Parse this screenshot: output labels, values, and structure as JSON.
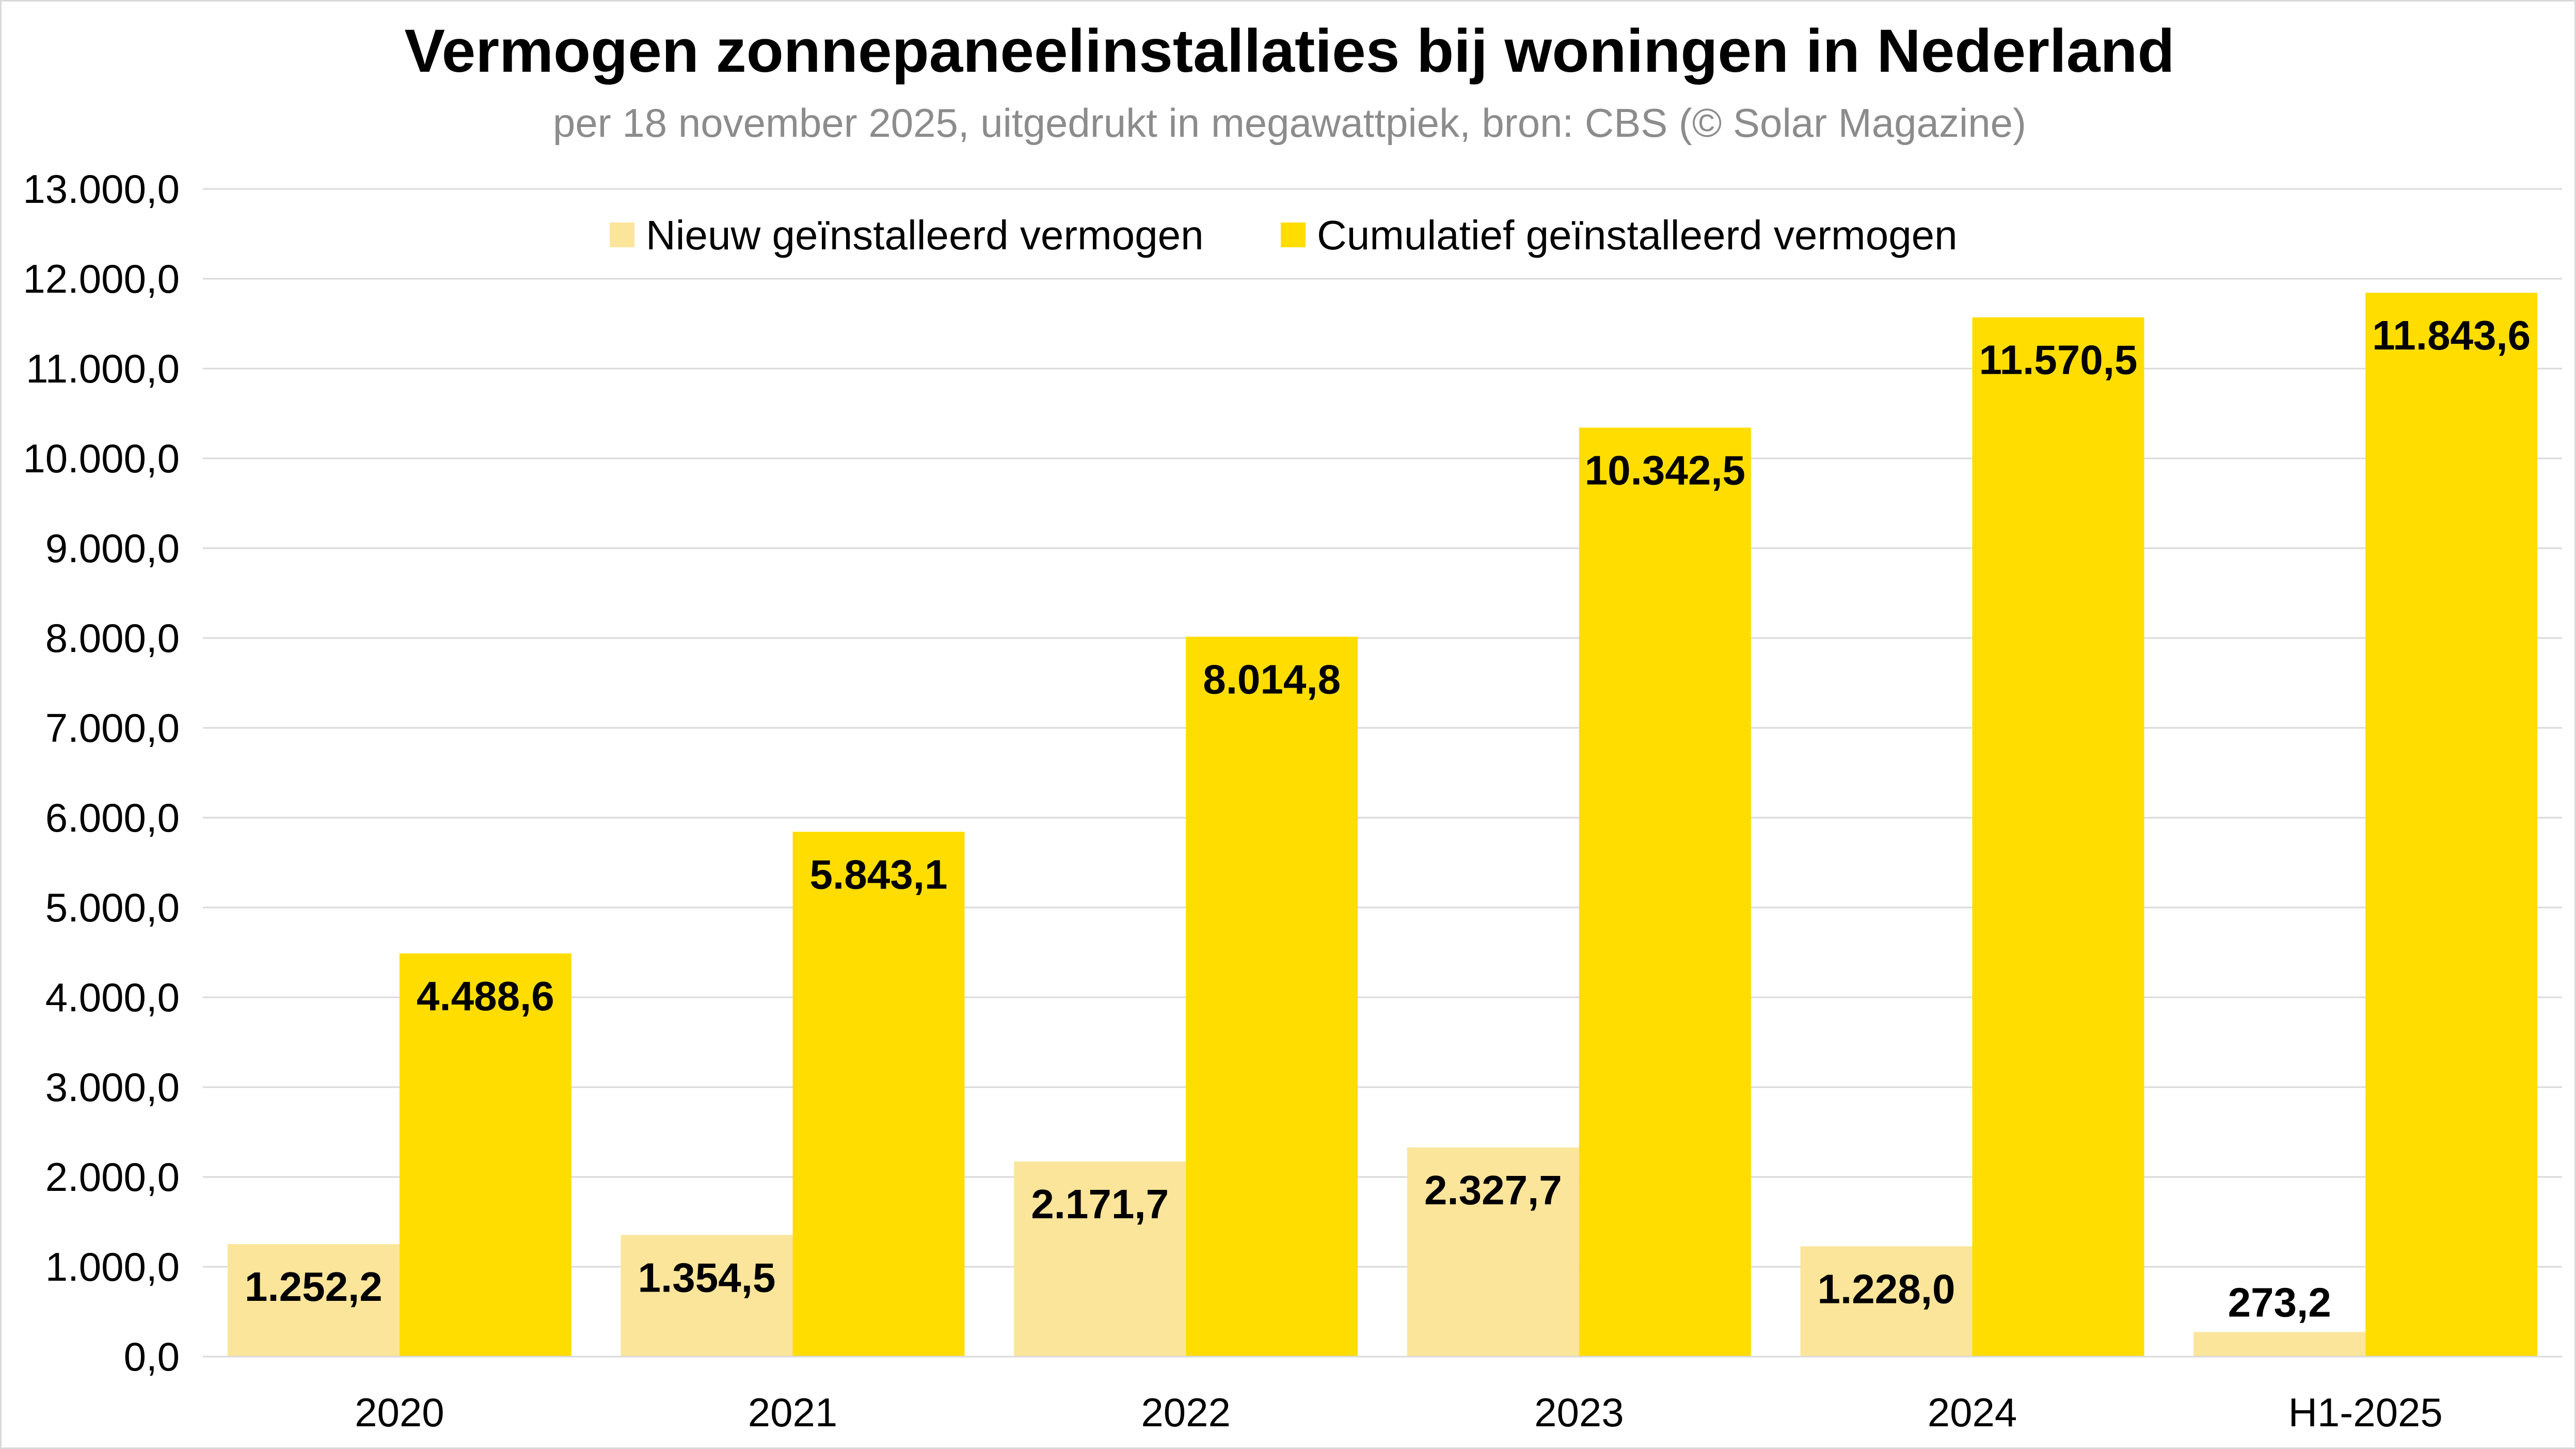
{
  "chart_data": {
    "type": "bar",
    "title": "Vermogen zonnepaneelinstallaties bij woningen in Nederland",
    "subtitle": "per 18 november 2025, uitgedrukt in megawattpiek, bron: CBS (© Solar Magazine)",
    "xlabel": "",
    "ylabel": "",
    "categories": [
      "2020",
      "2021",
      "2022",
      "2023",
      "2024",
      "H1-2025"
    ],
    "series": [
      {
        "name": "Nieuw geïnstalleerd vermogen",
        "color": "#fbe59a",
        "values": [
          1252.2,
          1354.5,
          2171.7,
          2327.7,
          1228.0,
          273.2
        ],
        "labels": [
          "1.252,2",
          "1.354,5",
          "2.171,7",
          "2.327,7",
          "1.228,0",
          "273,2"
        ]
      },
      {
        "name": "Cumulatief geïnstalleerd vermogen",
        "color": "#ffdd00",
        "values": [
          4488.6,
          5843.1,
          8014.8,
          10342.5,
          11570.5,
          11843.6
        ],
        "labels": [
          "4.488,6",
          "5.843,1",
          "8.014,8",
          "10.342,5",
          "11.570,5",
          "11.843,6"
        ]
      }
    ],
    "ylim": [
      0,
      13000
    ],
    "yticks": [
      0,
      1000,
      2000,
      3000,
      4000,
      5000,
      6000,
      7000,
      8000,
      9000,
      10000,
      11000,
      12000,
      13000
    ],
    "ytick_labels": [
      "0,0",
      "1.000,0",
      "2.000,0",
      "3.000,0",
      "4.000,0",
      "5.000,0",
      "6.000,0",
      "7.000,0",
      "8.000,0",
      "9.000,0",
      "10.000,0",
      "11.000,0",
      "12.000,0",
      "13.000,0"
    ],
    "grid": true,
    "legend_position": "top-center",
    "gridline_color": "#d9d9d9"
  }
}
